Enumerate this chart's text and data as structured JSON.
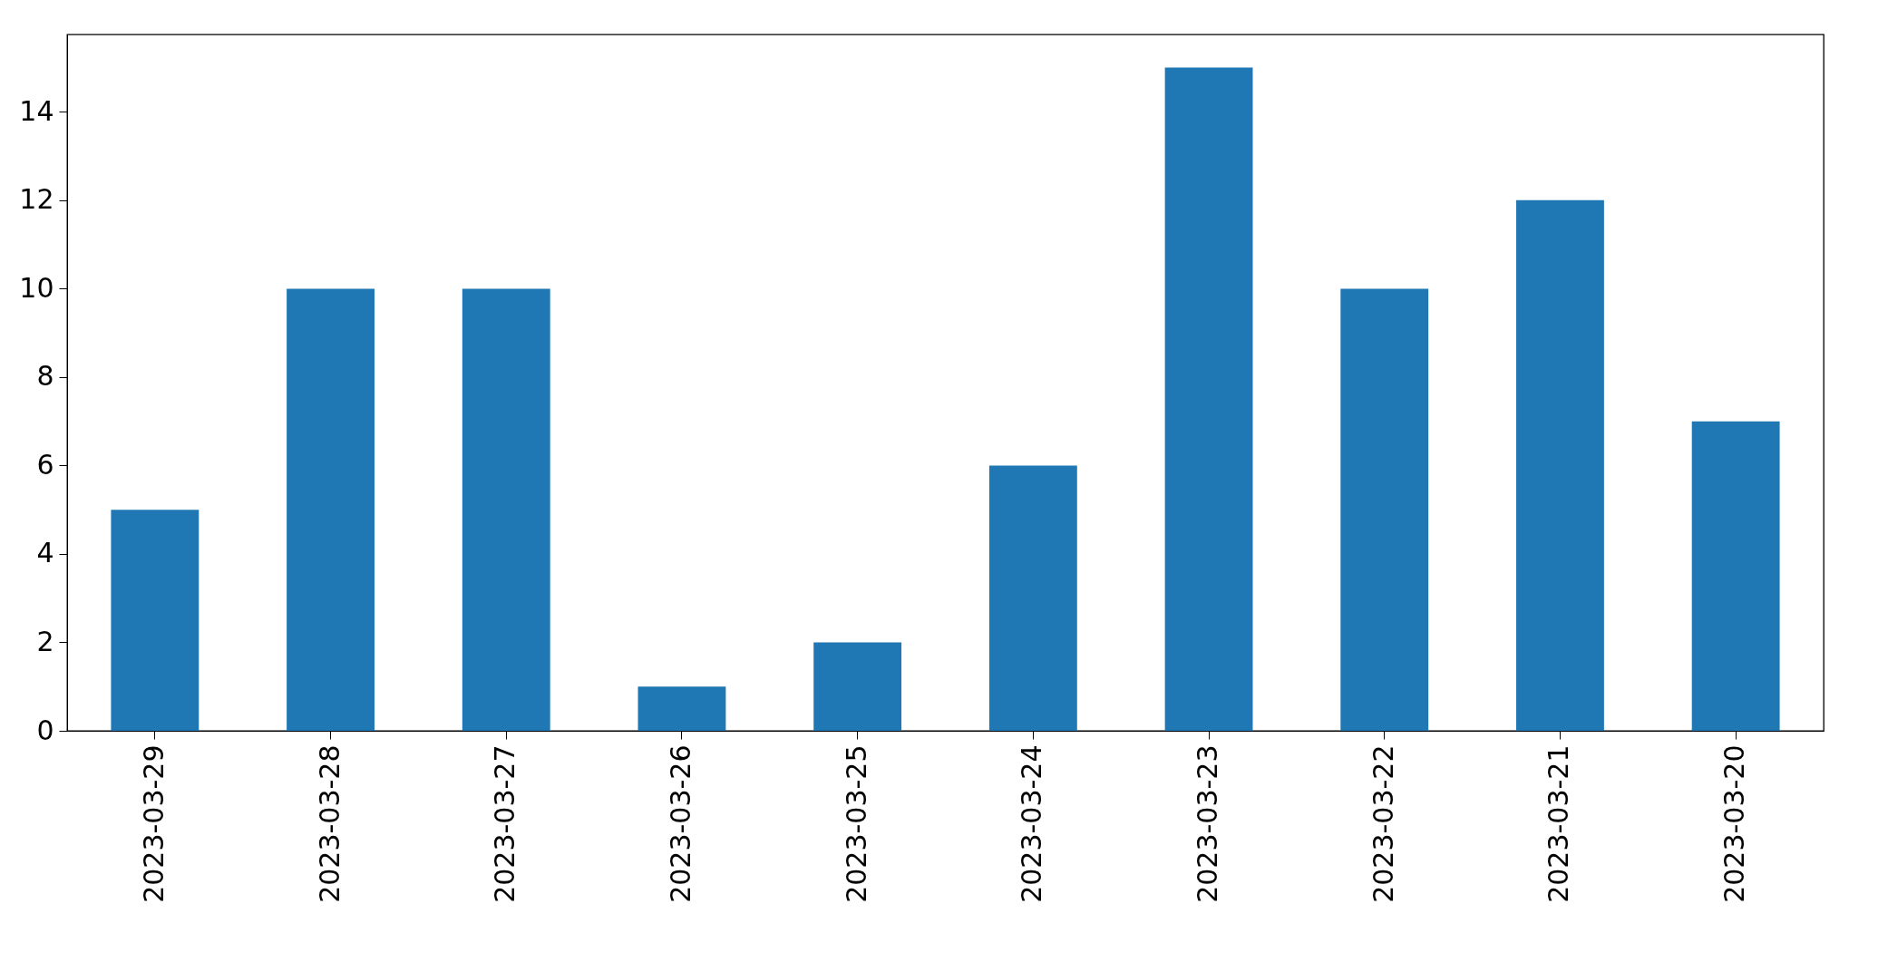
{
  "chart_data": {
    "type": "bar",
    "categories": [
      "2023-03-29",
      "2023-03-28",
      "2023-03-27",
      "2023-03-26",
      "2023-03-25",
      "2023-03-24",
      "2023-03-23",
      "2023-03-22",
      "2023-03-21",
      "2023-03-20"
    ],
    "values": [
      5,
      10,
      10,
      1,
      2,
      6,
      15,
      10,
      12,
      7
    ],
    "color": "#1f77b4",
    "ylim": [
      0,
      15.75
    ],
    "yticks": [
      0,
      2,
      4,
      6,
      8,
      10,
      12,
      14
    ],
    "grid": false
  }
}
